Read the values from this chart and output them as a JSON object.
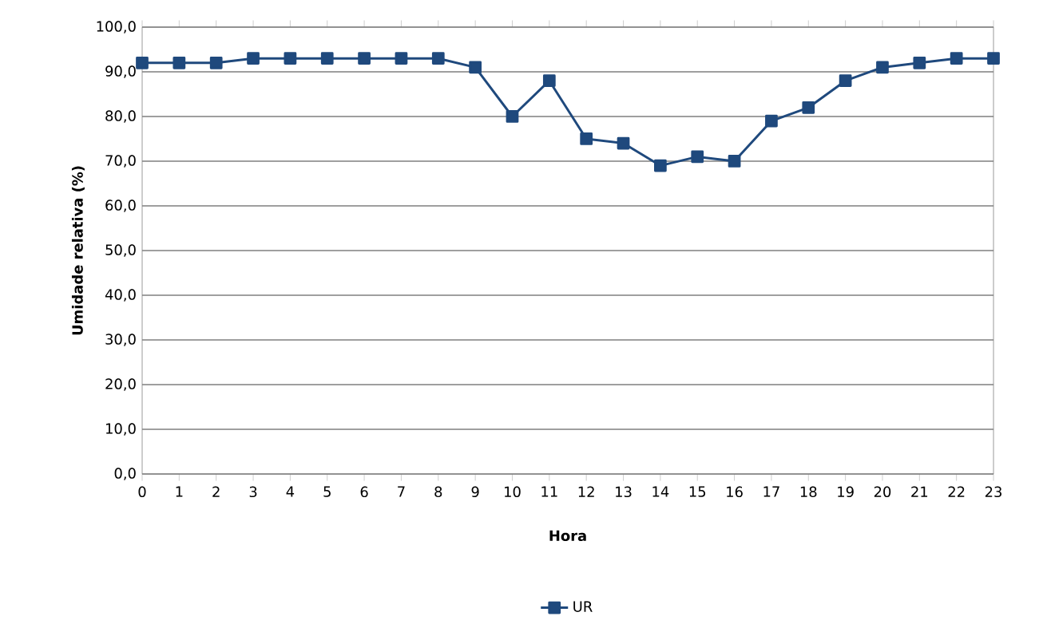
{
  "chart_data": {
    "type": "line",
    "categories": [
      "0",
      "1",
      "2",
      "3",
      "4",
      "5",
      "6",
      "7",
      "8",
      "9",
      "10",
      "11",
      "12",
      "13",
      "14",
      "15",
      "16",
      "17",
      "18",
      "19",
      "20",
      "21",
      "22",
      "23"
    ],
    "series": [
      {
        "name": "UR",
        "color": "#1f497d",
        "values": [
          92,
          92,
          92,
          93,
          93,
          93,
          93,
          93,
          93,
          91,
          80,
          88,
          75,
          74,
          69,
          71,
          70,
          79,
          82,
          88,
          91,
          92,
          93,
          93
        ]
      }
    ],
    "xlabel": "Hora",
    "ylabel": "Umidade relativa (%)",
    "ylim": [
      0,
      100
    ],
    "yticks": [
      {
        "value": 0,
        "label": "0,0"
      },
      {
        "value": 10,
        "label": "10,0"
      },
      {
        "value": 20,
        "label": "20,0"
      },
      {
        "value": 30,
        "label": "30,0"
      },
      {
        "value": 40,
        "label": "40,0"
      },
      {
        "value": 50,
        "label": "50,0"
      },
      {
        "value": 60,
        "label": "60,0"
      },
      {
        "value": 70,
        "label": "70,0"
      },
      {
        "value": 80,
        "label": "80,0"
      },
      {
        "value": 90,
        "label": "90,0"
      },
      {
        "value": 100,
        "label": "100,0"
      }
    ],
    "grid": "y",
    "legend": "bottom",
    "marker": "square",
    "line_style": "solid"
  }
}
